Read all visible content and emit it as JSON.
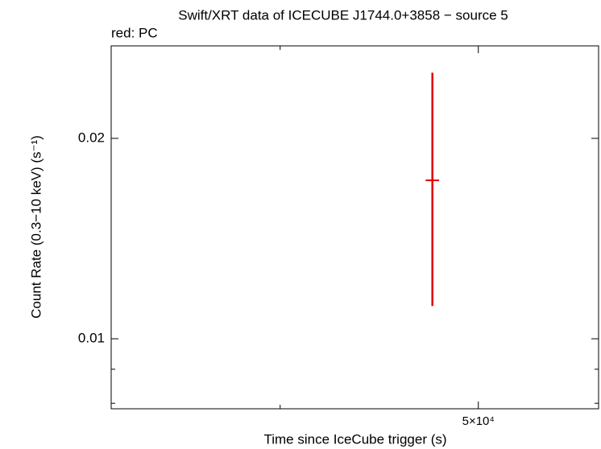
{
  "chart_data": {
    "type": "errorbar",
    "title": "Swift/XRT data of ICECUBE J1744.0+3858 − source 5",
    "subtitle": "red: PC",
    "x_label": "Time since IceCube trigger (s)",
    "y_label": "Count Rate (0.3−10 keV) (s⁻¹)",
    "x_log": true,
    "y_log": true,
    "xlim": [
      33070,
      57250
    ],
    "ylim": [
      0.00785,
      0.02754
    ],
    "xticks": [
      {
        "value": 50000,
        "label": "5×10⁴"
      }
    ],
    "x_minor_ticks": [
      40000
    ],
    "yticks": [
      0.01,
      0.02
    ],
    "y_minor_ticks": [
      0.008,
      0.009
    ],
    "series": [
      {
        "color": "#e00000",
        "x": [
          47480
        ],
        "xerr": [
          360
        ],
        "values": [
          0.0173
        ],
        "yerr_plus": [
          0.0078
        ],
        "yerr_minus": [
          0.0061
        ]
      }
    ]
  }
}
